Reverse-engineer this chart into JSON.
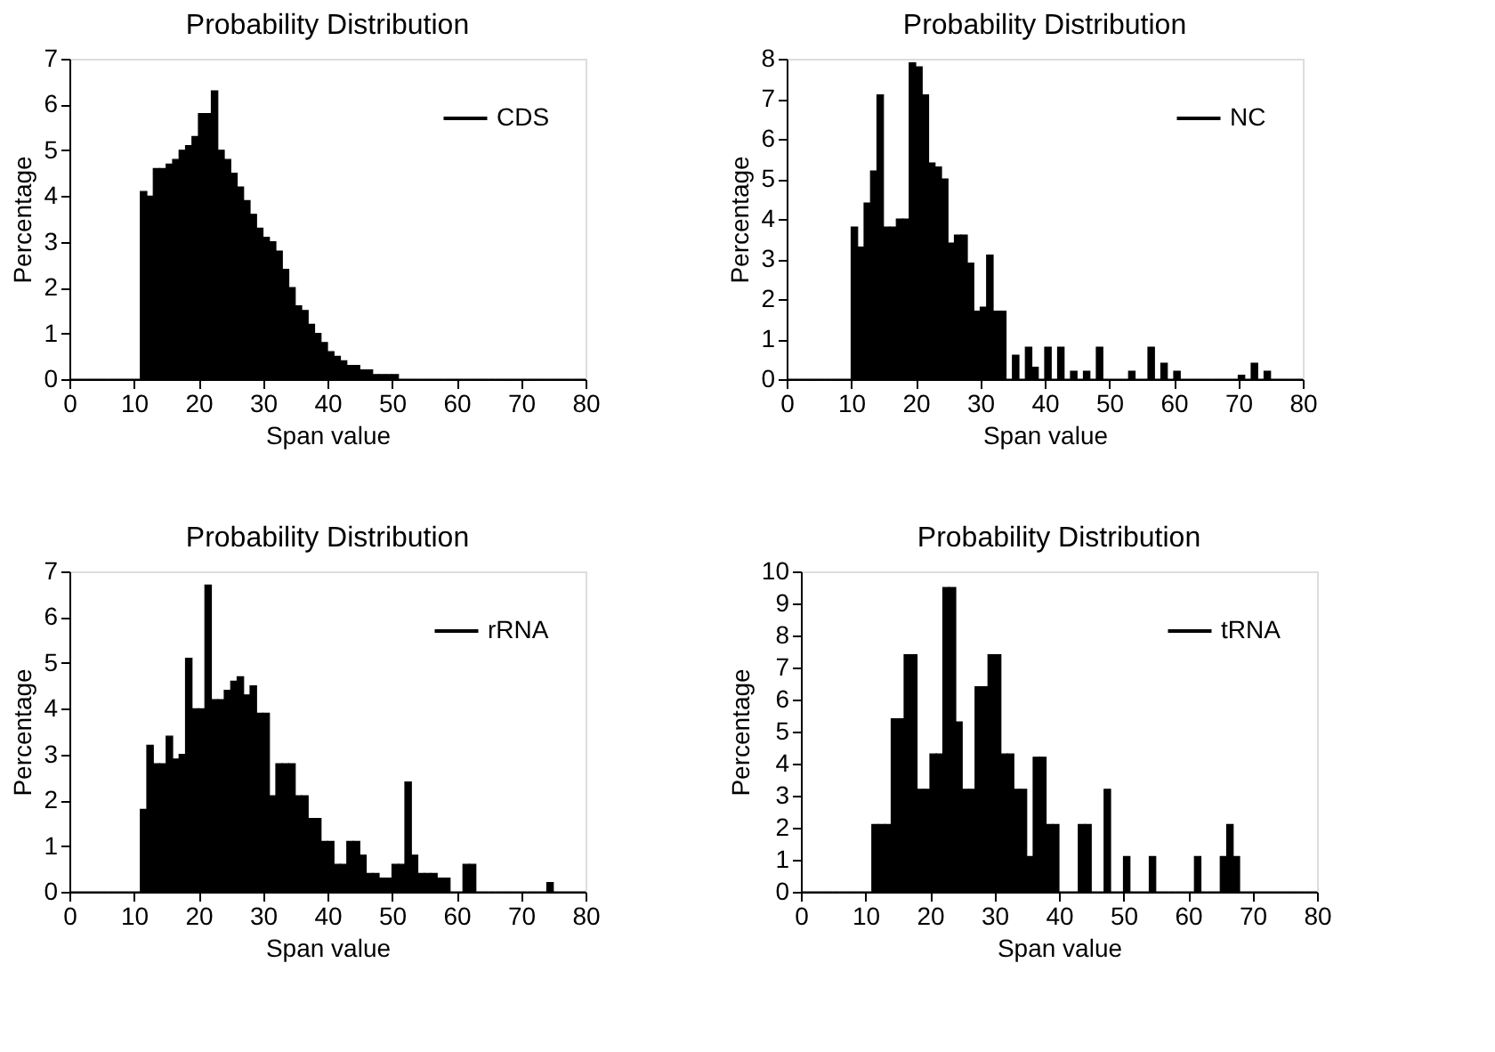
{
  "chart_data": [
    {
      "type": "histogram",
      "title": "Probability Distribution",
      "xlabel": "Span value",
      "ylabel": "Percentage",
      "legend": "top right",
      "bins": [
        0,
        1,
        2,
        3,
        4,
        5,
        6,
        7,
        8,
        9,
        10,
        11,
        12,
        13,
        14,
        15,
        16,
        17,
        18,
        19,
        20,
        21,
        22,
        23,
        24,
        25,
        26,
        27,
        28,
        29,
        30,
        31,
        32,
        33,
        34,
        35,
        36,
        37,
        38,
        39,
        40,
        41,
        42,
        43,
        44,
        45,
        46,
        47,
        48,
        49,
        50,
        51,
        52,
        53,
        54,
        55,
        56,
        57,
        58,
        59,
        60,
        61,
        62,
        63,
        64,
        65,
        66,
        67,
        68,
        69,
        70,
        71,
        72,
        73,
        74,
        75,
        76,
        77,
        78,
        79,
        80
      ],
      "xlim": [
        0,
        80
      ],
      "xticks": [
        0,
        10,
        20,
        30,
        40,
        50,
        60,
        70,
        80
      ],
      "ylim": [
        0,
        7
      ],
      "yticks": [
        0,
        1,
        2,
        3,
        4,
        5,
        6,
        7
      ],
      "series": [
        {
          "name": "CDS",
          "color": "#000000",
          "values": [
            0,
            0,
            0,
            0,
            0,
            0,
            0,
            0,
            0,
            0,
            0,
            4.1,
            4.0,
            4.6,
            4.6,
            4.7,
            4.8,
            5.0,
            5.1,
            5.3,
            5.8,
            5.8,
            6.3,
            5.0,
            4.8,
            4.5,
            4.2,
            3.9,
            3.6,
            3.3,
            3.1,
            3.0,
            2.8,
            2.4,
            2.0,
            1.6,
            1.5,
            1.2,
            1.0,
            0.8,
            0.6,
            0.5,
            0.4,
            0.3,
            0.3,
            0.2,
            0.2,
            0.1,
            0.1,
            0.1,
            0.1,
            0,
            0,
            0,
            0,
            0,
            0,
            0,
            0,
            0,
            0,
            0,
            0,
            0,
            0,
            0,
            0,
            0,
            0,
            0,
            0,
            0,
            0,
            0,
            0,
            0,
            0,
            0,
            0,
            0
          ]
        }
      ]
    },
    {
      "type": "histogram",
      "title": "Probability Distribution",
      "xlabel": "Span value",
      "ylabel": "Percentage",
      "legend": "top right",
      "bins": [
        0,
        1,
        2,
        3,
        4,
        5,
        6,
        7,
        8,
        9,
        10,
        11,
        12,
        13,
        14,
        15,
        16,
        17,
        18,
        19,
        20,
        21,
        22,
        23,
        24,
        25,
        26,
        27,
        28,
        29,
        30,
        31,
        32,
        33,
        34,
        35,
        36,
        37,
        38,
        39,
        40,
        41,
        42,
        43,
        44,
        45,
        46,
        47,
        48,
        49,
        50,
        51,
        52,
        53,
        54,
        55,
        56,
        57,
        58,
        59,
        60,
        61,
        62,
        63,
        64,
        65,
        66,
        67,
        68,
        69,
        70,
        71,
        72,
        73,
        74,
        75,
        76,
        77,
        78,
        79,
        80
      ],
      "xlim": [
        0,
        80
      ],
      "xticks": [
        0,
        10,
        20,
        30,
        40,
        50,
        60,
        70,
        80
      ],
      "ylim": [
        0,
        8
      ],
      "yticks": [
        0,
        1,
        2,
        3,
        4,
        5,
        6,
        7,
        8
      ],
      "series": [
        {
          "name": "NC",
          "color": "#000000",
          "values": [
            0,
            0,
            0,
            0,
            0,
            0,
            0,
            0,
            0,
            0,
            3.8,
            3.3,
            4.4,
            5.2,
            7.1,
            3.8,
            3.8,
            4.0,
            4.0,
            7.9,
            7.8,
            7.1,
            5.4,
            5.3,
            5.0,
            3.4,
            3.6,
            3.6,
            2.9,
            1.7,
            1.8,
            3.1,
            1.7,
            1.7,
            0,
            0.6,
            0,
            0.8,
            0.3,
            0,
            0.8,
            0,
            0.8,
            0,
            0.2,
            0,
            0.2,
            0,
            0.8,
            0,
            0,
            0,
            0,
            0.2,
            0,
            0,
            0.8,
            0,
            0.4,
            0,
            0.2,
            0,
            0,
            0,
            0,
            0,
            0,
            0,
            0,
            0,
            0.1,
            0,
            0.4,
            0,
            0.2,
            0,
            0,
            0,
            0,
            0
          ]
        }
      ]
    },
    {
      "type": "histogram",
      "title": "Probability Distribution",
      "xlabel": "Span value",
      "ylabel": "Percentage",
      "legend": "top right",
      "bins": [
        0,
        1,
        2,
        3,
        4,
        5,
        6,
        7,
        8,
        9,
        10,
        11,
        12,
        13,
        14,
        15,
        16,
        17,
        18,
        19,
        20,
        21,
        22,
        23,
        24,
        25,
        26,
        27,
        28,
        29,
        30,
        31,
        32,
        33,
        34,
        35,
        36,
        37,
        38,
        39,
        40,
        41,
        42,
        43,
        44,
        45,
        46,
        47,
        48,
        49,
        50,
        51,
        52,
        53,
        54,
        55,
        56,
        57,
        58,
        59,
        60,
        61,
        62,
        63,
        64,
        65,
        66,
        67,
        68,
        69,
        70,
        71,
        72,
        73,
        74,
        75,
        76,
        77,
        78,
        79,
        80
      ],
      "xlim": [
        0,
        80
      ],
      "xticks": [
        0,
        10,
        20,
        30,
        40,
        50,
        60,
        70,
        80
      ],
      "ylim": [
        0,
        7
      ],
      "yticks": [
        0,
        1,
        2,
        3,
        4,
        5,
        6,
        7
      ],
      "series": [
        {
          "name": "rRNA",
          "color": "#000000",
          "values": [
            0,
            0,
            0,
            0,
            0,
            0,
            0,
            0,
            0,
            0,
            0,
            1.8,
            3.2,
            2.8,
            2.8,
            3.4,
            2.9,
            3.0,
            5.1,
            4.0,
            4.0,
            6.7,
            4.2,
            4.2,
            4.4,
            4.6,
            4.7,
            4.3,
            4.5,
            3.9,
            3.9,
            2.1,
            2.8,
            2.8,
            2.8,
            2.1,
            2.1,
            1.6,
            1.6,
            1.1,
            1.1,
            0.6,
            0.6,
            1.1,
            1.1,
            0.8,
            0.4,
            0.4,
            0.3,
            0.3,
            0.6,
            0.6,
            2.4,
            0.8,
            0.4,
            0.4,
            0.4,
            0.3,
            0.3,
            0,
            0,
            0.6,
            0.6,
            0,
            0,
            0,
            0,
            0,
            0,
            0,
            0,
            0,
            0,
            0,
            0.2,
            0,
            0,
            0,
            0,
            0
          ]
        }
      ]
    },
    {
      "type": "histogram",
      "title": "Probability Distribution",
      "xlabel": "Span value",
      "ylabel": "Percentage",
      "legend": "top right",
      "bins": [
        0,
        1,
        2,
        3,
        4,
        5,
        6,
        7,
        8,
        9,
        10,
        11,
        12,
        13,
        14,
        15,
        16,
        17,
        18,
        19,
        20,
        21,
        22,
        23,
        24,
        25,
        26,
        27,
        28,
        29,
        30,
        31,
        32,
        33,
        34,
        35,
        36,
        37,
        38,
        39,
        40,
        41,
        42,
        43,
        44,
        45,
        46,
        47,
        48,
        49,
        50,
        51,
        52,
        53,
        54,
        55,
        56,
        57,
        58,
        59,
        60,
        61,
        62,
        63,
        64,
        65,
        66,
        67,
        68,
        69,
        70,
        71,
        72,
        73,
        74,
        75,
        76,
        77,
        78,
        79,
        80
      ],
      "xlim": [
        0,
        80
      ],
      "xticks": [
        0,
        10,
        20,
        30,
        40,
        50,
        60,
        70,
        80
      ],
      "ylim": [
        0,
        10
      ],
      "yticks": [
        0,
        1,
        2,
        3,
        4,
        5,
        6,
        7,
        8,
        9,
        10
      ],
      "series": [
        {
          "name": "tRNA",
          "color": "#000000",
          "values": [
            0,
            0,
            0,
            0,
            0,
            0,
            0,
            0,
            0,
            0,
            0,
            2.1,
            2.1,
            2.1,
            5.4,
            5.4,
            7.4,
            7.4,
            3.2,
            3.2,
            4.3,
            4.3,
            9.5,
            9.5,
            5.3,
            3.2,
            3.2,
            6.4,
            6.4,
            7.4,
            7.4,
            4.3,
            4.3,
            3.2,
            3.2,
            1.1,
            4.2,
            4.2,
            2.1,
            2.1,
            0,
            0,
            0,
            2.1,
            2.1,
            0,
            0,
            3.2,
            0,
            0,
            1.1,
            0,
            0,
            0,
            1.1,
            0,
            0,
            0,
            0,
            0,
            0,
            1.1,
            0,
            0,
            0,
            1.1,
            2.1,
            1.1,
            0,
            0,
            0,
            0,
            0,
            0,
            0,
            0,
            0,
            0,
            0,
            0
          ]
        }
      ]
    }
  ]
}
